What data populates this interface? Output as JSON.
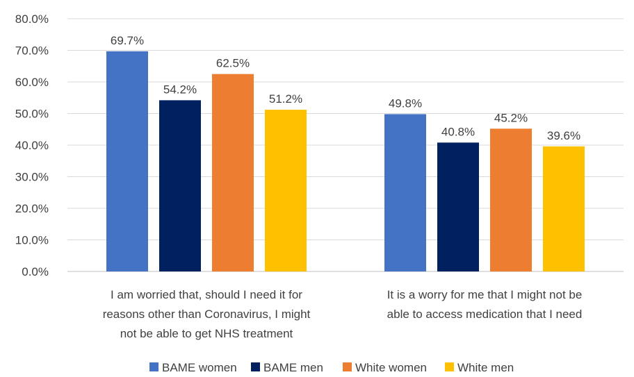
{
  "chart_data": {
    "type": "bar",
    "categories": [
      [
        "I am worried that, should I need it for",
        "reasons other than Coronavirus, I might",
        "not be able to get NHS treatment"
      ],
      [
        "It is a worry for me that I might not be",
        "able to access medication that I need"
      ]
    ],
    "series": [
      {
        "name": "BAME women",
        "color": "#4472C4",
        "values": [
          69.7,
          49.8
        ],
        "labels": [
          "69.7%",
          "49.8%"
        ]
      },
      {
        "name": "BAME men",
        "color": "#002060",
        "values": [
          54.2,
          40.8
        ],
        "labels": [
          "54.2%",
          "40.8%"
        ]
      },
      {
        "name": "White women",
        "color": "#ED7D31",
        "values": [
          62.5,
          45.2
        ],
        "labels": [
          "62.5%",
          "45.2%"
        ]
      },
      {
        "name": "White men",
        "color": "#FFC000",
        "values": [
          51.2,
          39.6
        ],
        "labels": [
          "51.2%",
          "39.6%"
        ]
      }
    ],
    "ylim": [
      0,
      80
    ],
    "yticks": [
      0,
      10,
      20,
      30,
      40,
      50,
      60,
      70,
      80
    ],
    "ytick_labels": [
      "0.0%",
      "10.0%",
      "20.0%",
      "30.0%",
      "40.0%",
      "50.0%",
      "60.0%",
      "70.0%",
      "80.0%"
    ],
    "grid": true,
    "legend_position": "bottom"
  }
}
